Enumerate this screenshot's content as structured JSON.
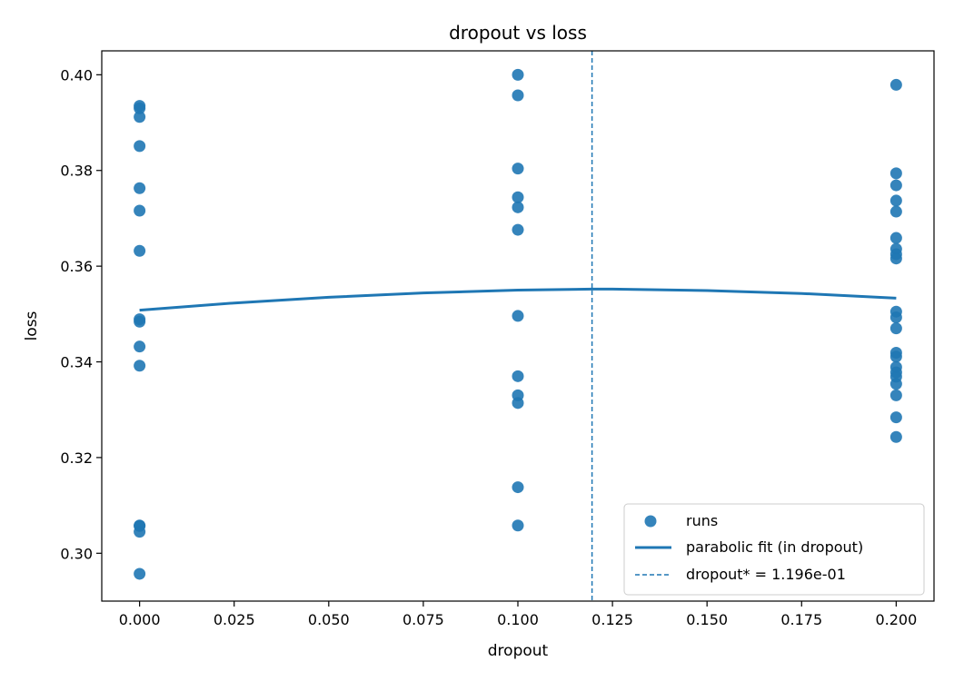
{
  "chart_data": {
    "type": "scatter",
    "title": "dropout vs loss",
    "xlabel": "dropout",
    "ylabel": "loss",
    "xlim": [
      -0.01,
      0.21
    ],
    "ylim": [
      0.29,
      0.405
    ],
    "xticks": [
      0.0,
      0.025,
      0.05,
      0.075,
      0.1,
      0.125,
      0.15,
      0.175,
      0.2
    ],
    "xtick_labels": [
      "0.000",
      "0.025",
      "0.050",
      "0.075",
      "0.100",
      "0.125",
      "0.150",
      "0.175",
      "0.200"
    ],
    "yticks": [
      0.3,
      0.32,
      0.34,
      0.36,
      0.38,
      0.4
    ],
    "ytick_labels": [
      "0.30",
      "0.32",
      "0.34",
      "0.36",
      "0.38",
      "0.40"
    ],
    "grid": false,
    "legend_position": "bottom-right",
    "colors": {
      "series": "#1f77b4"
    },
    "series": [
      {
        "name": "runs",
        "type": "scatter",
        "points": [
          [
            0.0,
            0.3935
          ],
          [
            0.0,
            0.393
          ],
          [
            0.0,
            0.3912
          ],
          [
            0.0,
            0.3851
          ],
          [
            0.0,
            0.3763
          ],
          [
            0.0,
            0.3716
          ],
          [
            0.0,
            0.3632
          ],
          [
            0.0,
            0.3489
          ],
          [
            0.0,
            0.3484
          ],
          [
            0.0,
            0.3432
          ],
          [
            0.0,
            0.3392
          ],
          [
            0.0,
            0.3058
          ],
          [
            0.0,
            0.3057
          ],
          [
            0.0,
            0.3045
          ],
          [
            0.0,
            0.2957
          ],
          [
            0.1,
            0.4
          ],
          [
            0.1,
            0.3957
          ],
          [
            0.1,
            0.3804
          ],
          [
            0.1,
            0.3744
          ],
          [
            0.1,
            0.3723
          ],
          [
            0.1,
            0.3676
          ],
          [
            0.1,
            0.3496
          ],
          [
            0.1,
            0.337
          ],
          [
            0.1,
            0.333
          ],
          [
            0.1,
            0.3314
          ],
          [
            0.1,
            0.3138
          ],
          [
            0.1,
            0.3058
          ],
          [
            0.2,
            0.3979
          ],
          [
            0.2,
            0.3794
          ],
          [
            0.2,
            0.3769
          ],
          [
            0.2,
            0.3737
          ],
          [
            0.2,
            0.3714
          ],
          [
            0.2,
            0.3659
          ],
          [
            0.2,
            0.3636
          ],
          [
            0.2,
            0.3625
          ],
          [
            0.2,
            0.3616
          ],
          [
            0.2,
            0.3505
          ],
          [
            0.2,
            0.3493
          ],
          [
            0.2,
            0.347
          ],
          [
            0.2,
            0.3419
          ],
          [
            0.2,
            0.3411
          ],
          [
            0.2,
            0.3389
          ],
          [
            0.2,
            0.3378
          ],
          [
            0.2,
            0.3369
          ],
          [
            0.2,
            0.3354
          ],
          [
            0.2,
            0.333
          ],
          [
            0.2,
            0.3284
          ],
          [
            0.2,
            0.3243
          ]
        ]
      },
      {
        "name": "parabolic fit (in dropout)",
        "type": "line",
        "x": [
          0.0,
          0.025,
          0.05,
          0.075,
          0.1,
          0.1196,
          0.125,
          0.15,
          0.175,
          0.2
        ],
        "y": [
          0.3508,
          0.3523,
          0.3535,
          0.3544,
          0.355,
          0.3552,
          0.3552,
          0.3549,
          0.3543,
          0.3533
        ]
      },
      {
        "name": "dropout* = 1.196e-01",
        "type": "vline",
        "x": 0.1196
      }
    ]
  }
}
